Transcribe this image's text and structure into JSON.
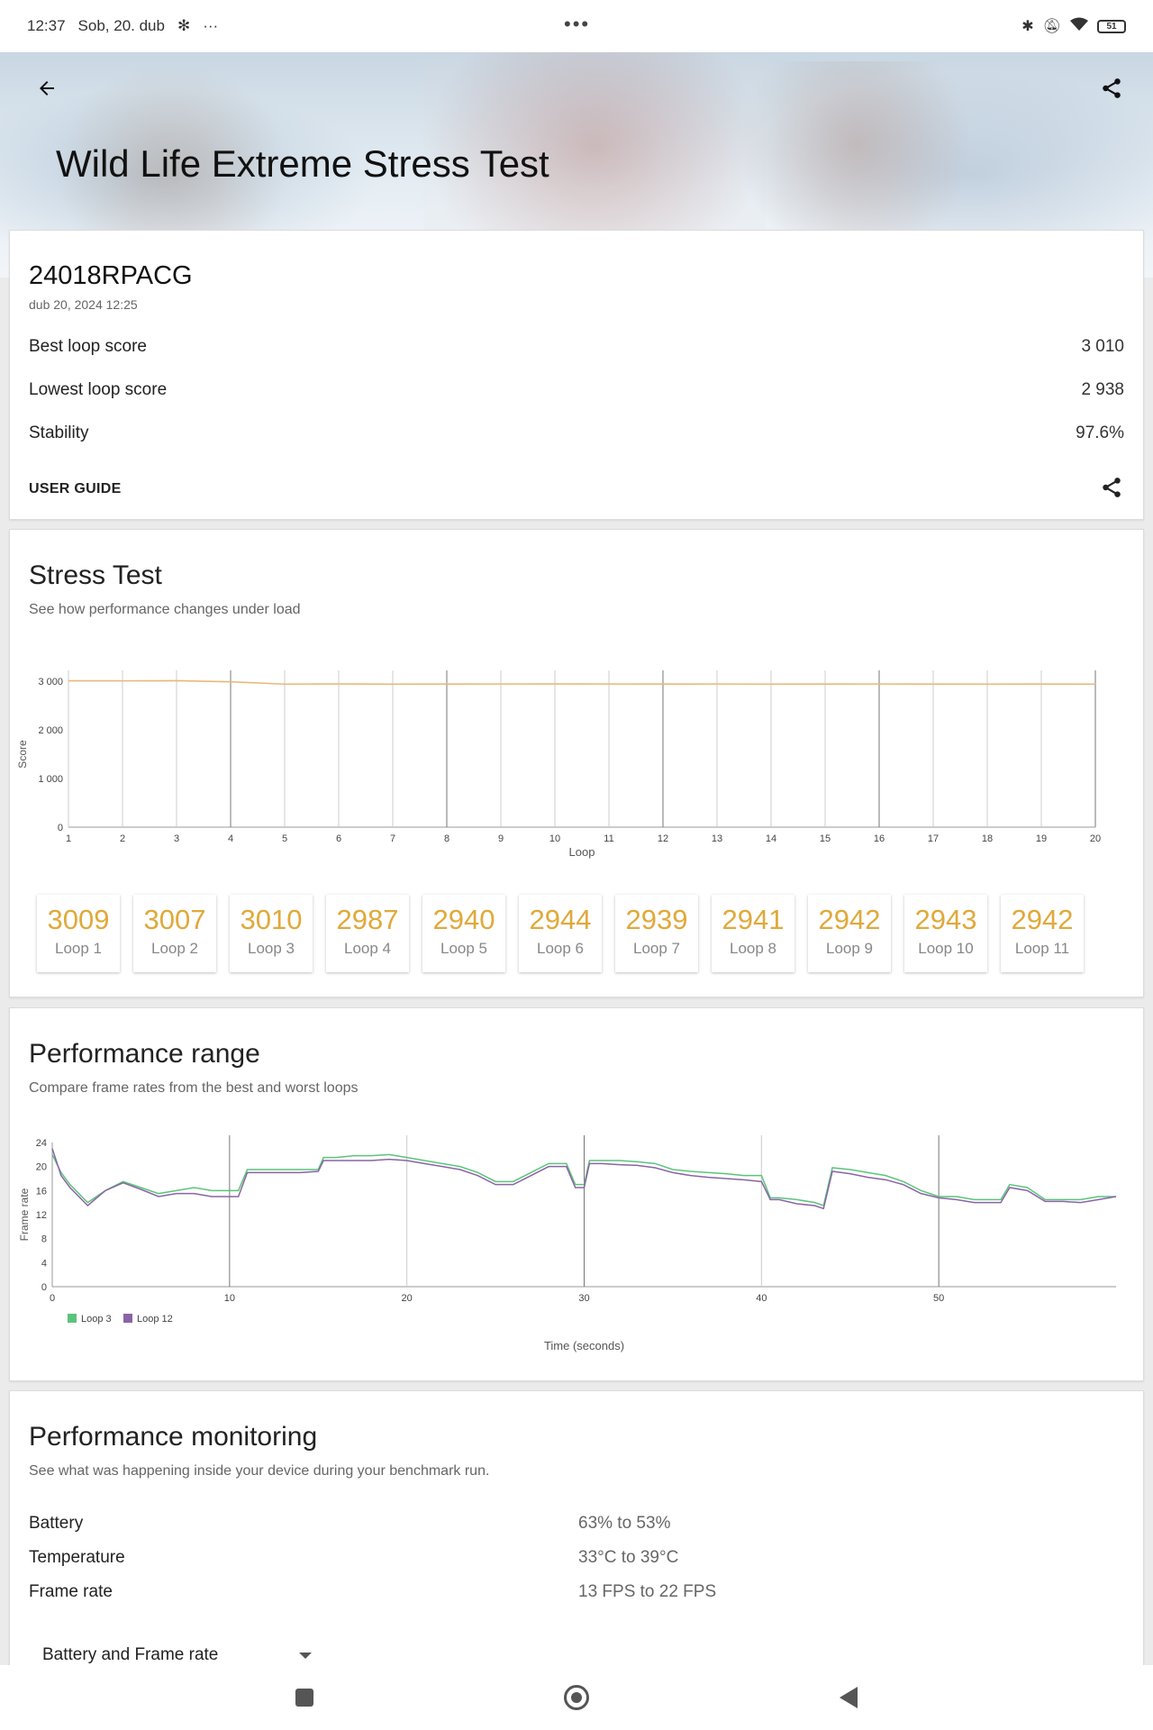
{
  "status": {
    "time": "12:37",
    "date": "Sob, 20. dub",
    "battery": "51",
    "menu_dots": "•••",
    "more": "···"
  },
  "header": {
    "title": "Wild Life Extreme Stress Test"
  },
  "summary": {
    "device": "24018RPACG",
    "date": "dub 20, 2024 12:25",
    "rows": [
      {
        "label": "Best loop score",
        "value": "3 010"
      },
      {
        "label": "Lowest loop score",
        "value": "2 938"
      },
      {
        "label": "Stability",
        "value": "97.6%"
      }
    ],
    "user_guide": "USER GUIDE"
  },
  "stress": {
    "title": "Stress Test",
    "subtitle": "See how performance changes under load",
    "loops": [
      {
        "score": "3009",
        "label": "Loop 1"
      },
      {
        "score": "3007",
        "label": "Loop 2"
      },
      {
        "score": "3010",
        "label": "Loop 3"
      },
      {
        "score": "2987",
        "label": "Loop 4"
      },
      {
        "score": "2940",
        "label": "Loop 5"
      },
      {
        "score": "2944",
        "label": "Loop 6"
      },
      {
        "score": "2939",
        "label": "Loop 7"
      },
      {
        "score": "2941",
        "label": "Loop 8"
      },
      {
        "score": "2942",
        "label": "Loop 9"
      },
      {
        "score": "2943",
        "label": "Loop 10"
      },
      {
        "score": "2942",
        "label": "Loop 11"
      }
    ]
  },
  "range": {
    "title": "Performance range",
    "subtitle": "Compare frame rates from the best and worst loops"
  },
  "monitoring": {
    "title": "Performance monitoring",
    "subtitle": "See what was happening inside your device during your benchmark run.",
    "rows": [
      {
        "label": "Battery",
        "value": "63% to 53%"
      },
      {
        "label": "Temperature",
        "value": "33°C to 39°C"
      },
      {
        "label": "Frame rate",
        "value": "13 FPS to 22 FPS"
      }
    ],
    "dropdown": "Battery and Frame rate"
  },
  "chart_data": [
    {
      "type": "line",
      "xlabel": "Loop",
      "ylabel": "Score",
      "x": [
        1,
        2,
        3,
        4,
        5,
        6,
        7,
        8,
        9,
        10,
        11,
        12,
        13,
        14,
        15,
        16,
        17,
        18,
        19,
        20
      ],
      "ylim": [
        0,
        3000
      ],
      "yticks": [
        "0",
        "1 000",
        "2 000",
        "3 000"
      ],
      "series": [
        {
          "color": "#e8b97a",
          "values": [
            3009,
            3007,
            3010,
            2987,
            2940,
            2944,
            2939,
            2941,
            2942,
            2943,
            2942,
            2941,
            2942,
            2940,
            2941,
            2942,
            2941,
            2940,
            2941,
            2938
          ]
        }
      ],
      "grid": true
    },
    {
      "type": "line",
      "xlabel": "Time (seconds)",
      "ylabel": "Frame rate",
      "xlim": [
        0,
        60
      ],
      "ylim": [
        0,
        24
      ],
      "xticks": [
        0,
        10,
        20,
        30,
        40,
        50
      ],
      "yticks": [
        0,
        4,
        8,
        12,
        16,
        20,
        24
      ],
      "legend": "bottom-left",
      "series": [
        {
          "name": "Loop 3",
          "color": "#5cc47a",
          "x": [
            0,
            0.5,
            1,
            2,
            3,
            4,
            5,
            6,
            7,
            8,
            9,
            10,
            10.5,
            11,
            11.5,
            12,
            13,
            14,
            15,
            15.3,
            16,
            17,
            18,
            19,
            20,
            21,
            22,
            23,
            24,
            25,
            26,
            27,
            28,
            29,
            29.5,
            30,
            30.3,
            31,
            32,
            33,
            34,
            35,
            36,
            37,
            38,
            39,
            40,
            40.5,
            41,
            42,
            43,
            43.5,
            44,
            45,
            46,
            47,
            48,
            49,
            50,
            51,
            52,
            53,
            53.5,
            54,
            55,
            56,
            57,
            58,
            59,
            60
          ],
          "y": [
            22,
            19,
            17,
            14,
            16,
            17.5,
            16.5,
            15.5,
            16,
            16.5,
            16,
            16,
            16,
            19.5,
            19.5,
            19.5,
            19.5,
            19.5,
            19.5,
            21.5,
            21.5,
            21.8,
            21.8,
            22,
            21.5,
            21,
            20.5,
            20,
            19,
            17.5,
            17.5,
            19,
            20.5,
            20.5,
            17,
            17,
            21,
            21,
            21,
            20.8,
            20.5,
            19.5,
            19.2,
            19,
            18.8,
            18.5,
            18.5,
            14.8,
            14.8,
            14.5,
            14,
            13.5,
            19.8,
            19.5,
            19,
            18.5,
            17.5,
            16,
            15,
            15,
            14.5,
            14.5,
            14.5,
            17,
            16.5,
            14.5,
            14.5,
            14.5,
            15,
            15
          ]
        },
        {
          "name": "Loop 12",
          "color": "#8a64a6",
          "x": [
            0,
            0.5,
            1,
            2,
            3,
            4,
            5,
            6,
            7,
            8,
            9,
            10,
            10.5,
            11,
            11.5,
            12,
            13,
            14,
            15,
            15.3,
            16,
            17,
            18,
            19,
            20,
            21,
            22,
            23,
            24,
            25,
            26,
            27,
            28,
            29,
            29.5,
            30,
            30.3,
            31,
            32,
            33,
            34,
            35,
            36,
            37,
            38,
            39,
            40,
            40.5,
            41,
            42,
            43,
            43.5,
            44,
            45,
            46,
            47,
            48,
            49,
            50,
            51,
            52,
            53,
            53.5,
            54,
            55,
            56,
            57,
            58,
            59,
            60
          ],
          "y": [
            23,
            18.5,
            16.5,
            13.5,
            16,
            17.3,
            16.2,
            15,
            15.5,
            15.5,
            15,
            15,
            15,
            19,
            19,
            19,
            19,
            19,
            19.2,
            21,
            21,
            21,
            21,
            21.2,
            21,
            20.5,
            20,
            19.5,
            18.5,
            17,
            17,
            18.5,
            20,
            20,
            16.5,
            16.5,
            20.5,
            20.5,
            20.3,
            20.2,
            19.8,
            19,
            18.5,
            18.2,
            18,
            17.8,
            17.5,
            14.5,
            14.5,
            13.8,
            13.5,
            13,
            19.2,
            18.8,
            18.2,
            17.8,
            17,
            15.5,
            14.8,
            14.5,
            14,
            14,
            14,
            16.5,
            16,
            14.2,
            14.2,
            14,
            14.5,
            15
          ]
        }
      ],
      "grid": true
    }
  ]
}
